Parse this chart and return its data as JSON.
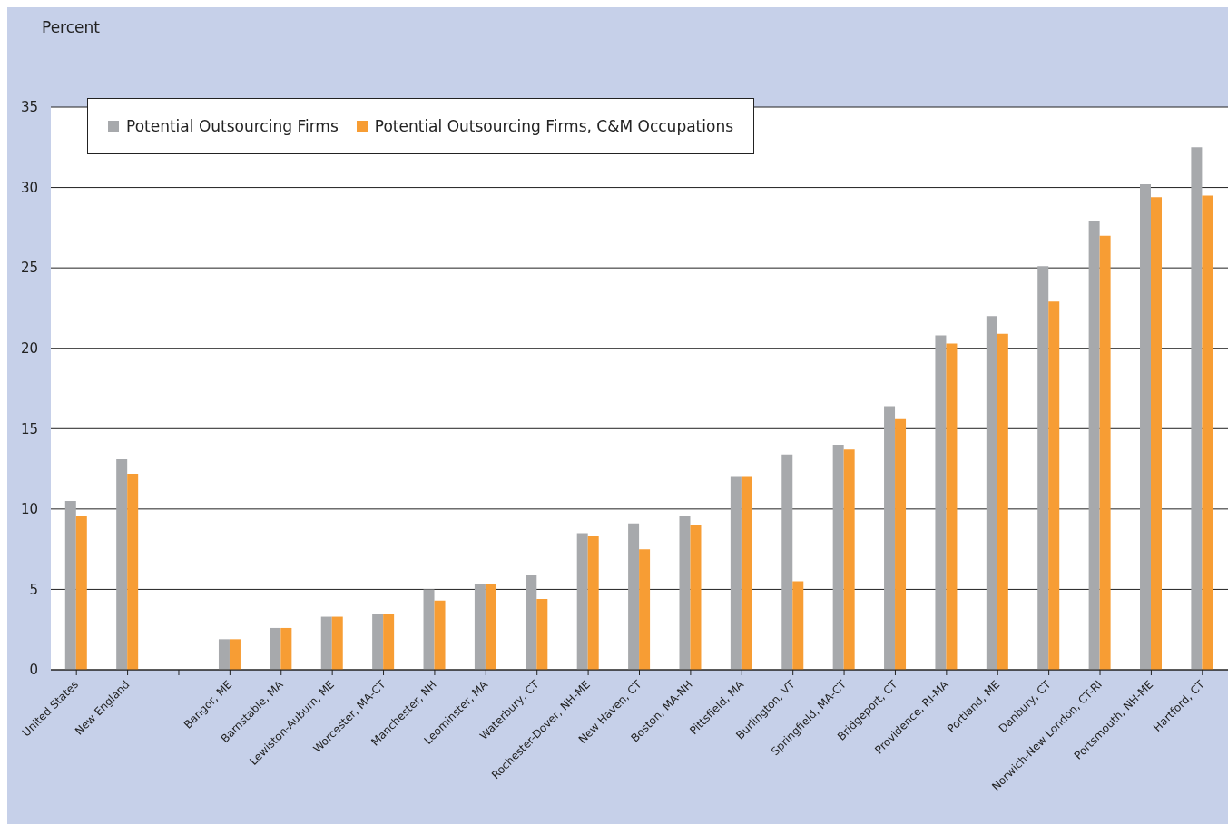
{
  "chart_data": {
    "type": "bar",
    "ylabel": "Percent",
    "categories": [
      "United States",
      "New England",
      null,
      "Bangor, ME",
      "Barnstable, MA",
      "Lewiston-Auburn, ME",
      "Worcester, MA-CT",
      "Manchester, NH",
      "Leominster, MA",
      "Waterbury, CT",
      "Rochester-Dover, NH-ME",
      "New Haven, CT",
      "Boston, MA-NH",
      "Pittsfield, MA",
      "Burlington, VT",
      "Springfield, MA-CT",
      "Bridgeport, CT",
      "Providence, RI-MA",
      "Portland, ME",
      "Danbury, CT",
      "Norwich-New London, CT-RI",
      "Portsmouth, NH-ME",
      "Hartford, CT"
    ],
    "series": [
      {
        "name": "Potential Outsourcing Firms",
        "color": "#a7a9ac",
        "values": [
          10.5,
          13.1,
          null,
          1.9,
          2.6,
          3.3,
          3.5,
          5.0,
          5.3,
          5.9,
          8.5,
          9.1,
          9.6,
          12.0,
          13.4,
          14.0,
          16.4,
          20.8,
          22.0,
          25.1,
          27.9,
          30.2,
          32.5
        ]
      },
      {
        "name": "Potential Outsourcing Firms, C&M Occupations",
        "color": "#f79d34",
        "values": [
          9.6,
          12.2,
          null,
          1.9,
          2.6,
          3.3,
          3.5,
          4.3,
          5.3,
          4.4,
          8.3,
          7.5,
          9.0,
          12.0,
          5.5,
          13.7,
          15.6,
          20.3,
          20.9,
          22.9,
          27.0,
          29.4,
          29.5
        ]
      }
    ],
    "ylim": [
      0,
      35
    ],
    "yticks": [
      0,
      5,
      10,
      15,
      20,
      25,
      30,
      35
    ],
    "grid": "y",
    "legend": "top left"
  }
}
